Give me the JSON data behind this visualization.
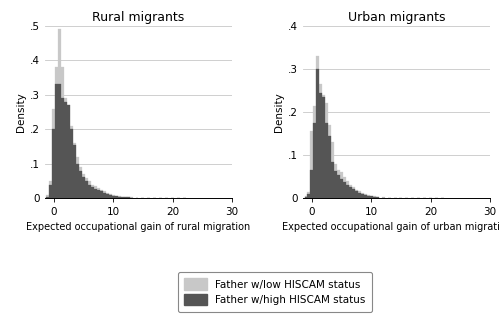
{
  "left_title": "Rural migrants",
  "right_title": "Urban migrants",
  "left_xlabel": "Expected occupational gain of rural migration",
  "right_xlabel": "Expected occupational gain of urban migration",
  "ylabel": "Density",
  "legend_labels": [
    "Father w/low HISCAM status",
    "Father w/high HISCAM status"
  ],
  "color_low": "#c8c8c8",
  "color_high": "#555555",
  "xlim_left": -1.5,
  "xlim_right": 30,
  "left_ylim": [
    0,
    0.5
  ],
  "right_ylim": [
    0,
    0.4
  ],
  "left_yticks": [
    0,
    0.1,
    0.2,
    0.3,
    0.4,
    0.5
  ],
  "right_yticks": [
    0,
    0.1,
    0.2,
    0.3,
    0.4
  ],
  "xticks": [
    0,
    10,
    20,
    30
  ],
  "rural_low_hist": {
    "bin_centers": [
      -1.0,
      -0.5,
      0.0,
      0.5,
      1.0,
      1.5,
      2.0,
      2.5,
      3.0,
      3.5,
      4.0,
      4.5,
      5.0,
      5.5,
      6.0,
      6.5,
      7.0,
      7.5,
      8.0,
      8.5,
      9.0,
      9.5,
      10.0,
      10.5,
      11.0,
      11.5,
      12.0,
      12.5,
      13.0,
      14.0,
      15.0,
      16.0,
      17.0,
      18.0,
      19.0,
      20.0,
      21.0,
      22.0
    ],
    "heights": [
      0.01,
      0.05,
      0.26,
      0.38,
      0.49,
      0.38,
      0.29,
      0.27,
      0.21,
      0.16,
      0.12,
      0.09,
      0.07,
      0.06,
      0.05,
      0.04,
      0.035,
      0.03,
      0.025,
      0.02,
      0.015,
      0.012,
      0.01,
      0.008,
      0.006,
      0.005,
      0.004,
      0.003,
      0.003,
      0.002,
      0.002,
      0.001,
      0.001,
      0.001,
      0.0005,
      0.0005,
      0.0002,
      0.0001
    ]
  },
  "rural_high_hist": {
    "bin_centers": [
      -1.0,
      -0.5,
      0.0,
      0.5,
      1.0,
      1.5,
      2.0,
      2.5,
      3.0,
      3.5,
      4.0,
      4.5,
      5.0,
      5.5,
      6.0,
      6.5,
      7.0,
      7.5,
      8.0,
      8.5,
      9.0,
      9.5,
      10.0,
      10.5,
      11.0,
      11.5,
      12.0,
      12.5,
      13.0,
      14.0,
      15.0,
      16.0,
      17.0,
      18.0,
      19.0,
      20.0,
      21.0,
      22.0
    ],
    "heights": [
      0.005,
      0.04,
      0.2,
      0.33,
      0.33,
      0.29,
      0.28,
      0.27,
      0.2,
      0.155,
      0.1,
      0.08,
      0.063,
      0.05,
      0.04,
      0.033,
      0.028,
      0.024,
      0.02,
      0.015,
      0.012,
      0.01,
      0.008,
      0.007,
      0.005,
      0.004,
      0.003,
      0.003,
      0.002,
      0.002,
      0.001,
      0.001,
      0.0005,
      0.0005,
      0.0003,
      0.0002,
      0.0001,
      5e-05
    ]
  },
  "urban_low_hist": {
    "bin_centers": [
      -1.0,
      -0.5,
      0.0,
      0.5,
      1.0,
      1.5,
      2.0,
      2.5,
      3.0,
      3.5,
      4.0,
      4.5,
      5.0,
      5.5,
      6.0,
      6.5,
      7.0,
      7.5,
      8.0,
      8.5,
      9.0,
      9.5,
      10.0,
      10.5,
      11.0,
      12.0,
      13.0,
      14.0,
      15.0,
      16.0,
      17.0,
      18.0,
      19.0,
      20.0,
      21.0,
      22.0
    ],
    "heights": [
      0.005,
      0.015,
      0.155,
      0.215,
      0.33,
      0.265,
      0.24,
      0.22,
      0.17,
      0.13,
      0.08,
      0.065,
      0.06,
      0.05,
      0.04,
      0.032,
      0.026,
      0.02,
      0.016,
      0.012,
      0.01,
      0.008,
      0.006,
      0.005,
      0.004,
      0.003,
      0.002,
      0.002,
      0.001,
      0.001,
      0.0005,
      0.0005,
      0.0002,
      0.0002,
      0.0001,
      5e-05
    ]
  },
  "urban_high_hist": {
    "bin_centers": [
      -1.0,
      -0.5,
      0.0,
      0.5,
      1.0,
      1.5,
      2.0,
      2.5,
      3.0,
      3.5,
      4.0,
      4.5,
      5.0,
      5.5,
      6.0,
      6.5,
      7.0,
      7.5,
      8.0,
      8.5,
      9.0,
      9.5,
      10.0,
      10.5,
      11.0,
      12.0,
      13.0,
      14.0,
      15.0,
      16.0,
      17.0,
      18.0,
      19.0,
      20.0,
      21.0,
      22.0
    ],
    "heights": [
      0.003,
      0.01,
      0.065,
      0.175,
      0.3,
      0.245,
      0.235,
      0.175,
      0.145,
      0.085,
      0.063,
      0.055,
      0.045,
      0.038,
      0.032,
      0.026,
      0.022,
      0.016,
      0.013,
      0.01,
      0.008,
      0.006,
      0.005,
      0.004,
      0.003,
      0.002,
      0.0015,
      0.001,
      0.001,
      0.0005,
      0.0004,
      0.0003,
      0.0002,
      0.0001,
      5e-05,
      3e-05
    ]
  },
  "bin_width": 0.5,
  "background_color": "#ffffff",
  "grid_color": "#c8c8c8",
  "title_fontsize": 9,
  "label_fontsize": 7,
  "tick_fontsize": 7.5
}
